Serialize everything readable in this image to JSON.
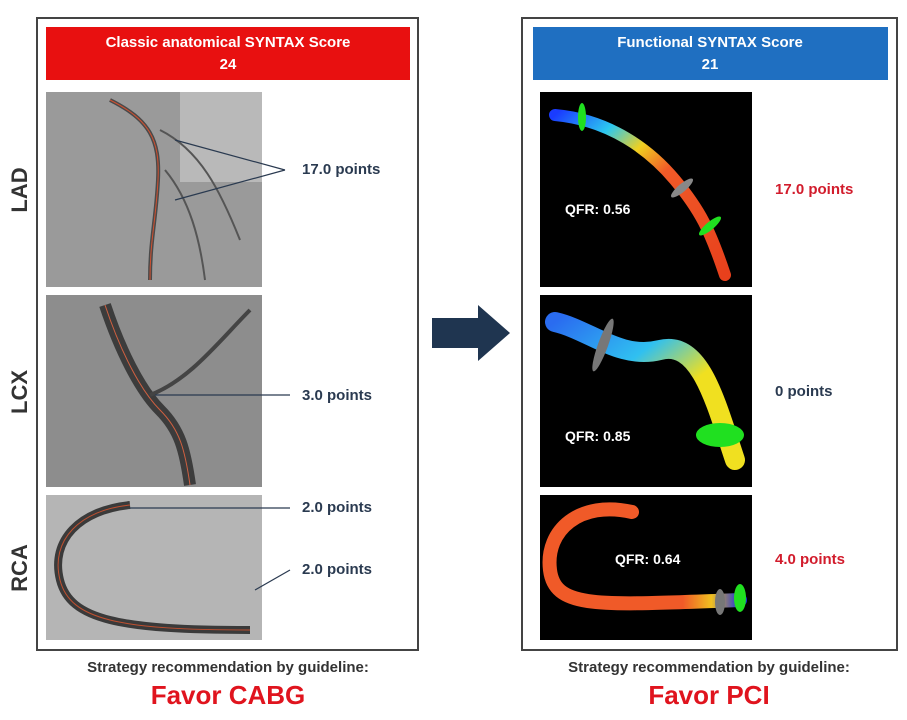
{
  "left": {
    "header": {
      "title": "Classic anatomical SYNTAX Score",
      "score": "24"
    },
    "rows": [
      {
        "label": "LAD",
        "points": [
          "17.0 points"
        ]
      },
      {
        "label": "LCX",
        "points": [
          "3.0 points"
        ]
      },
      {
        "label": "RCA",
        "points": [
          "2.0 points",
          "2.0 points"
        ]
      }
    ],
    "footer": {
      "caption": "Strategy recommendation by guideline:",
      "recommendation": "Favor CABG"
    }
  },
  "right": {
    "header": {
      "title": "Functional SYNTAX Score",
      "score": "21"
    },
    "rows": [
      {
        "qfr": "QFR: 0.56",
        "points": "17.0 points"
      },
      {
        "qfr": "QFR: 0.85",
        "points": "0 points"
      },
      {
        "qfr": "QFR: 0.64",
        "points": "4.0 points"
      }
    ],
    "footer": {
      "caption": "Strategy recommendation by guideline:",
      "recommendation": "Favor PCI"
    }
  }
}
